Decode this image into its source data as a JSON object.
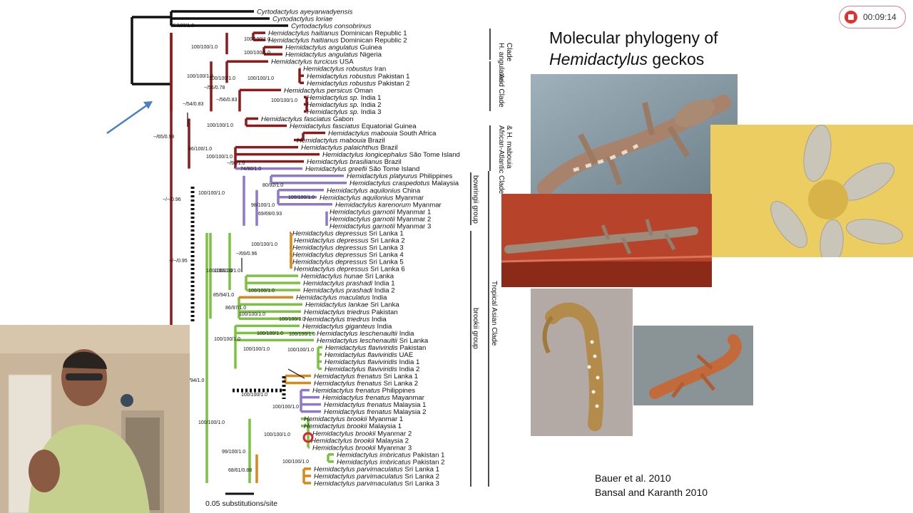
{
  "slide": {
    "title_line1": "Molecular phylogeny of",
    "title_genus": "Hemidactylus",
    "title_rest": " geckos",
    "references": [
      "Bauer et al. 2010",
      "Bansal and Karanth 2010"
    ]
  },
  "recorder": {
    "elapsed": "00:09:14",
    "stop_icon": "stop-record-icon"
  },
  "colors": {
    "black_branch": "#111111",
    "maroon_branch": "#8b1a1a",
    "purple_branch": "#8f78c4",
    "green_branch": "#7cc242",
    "orange_branch": "#d68a1c",
    "arrow_blue": "#4a7fc1",
    "highlight_red": "#d9262c"
  },
  "tree": {
    "scale_label": "0.05 substitutions/site",
    "taxa": [
      {
        "genus": "Cyrtodactylus",
        "species": "ayeyarwadyensis",
        "loc": ""
      },
      {
        "genus": "Cyrtodactylus",
        "species": "loriae",
        "loc": ""
      },
      {
        "genus": "Cyrtodactylus",
        "species": "consobrinus",
        "loc": ""
      },
      {
        "genus": "Hemidactylus",
        "species": "haitianus",
        "loc": "Dominican Republic 1"
      },
      {
        "genus": "Hemidactylus",
        "species": "haitianus",
        "loc": "Dominican Republic 2"
      },
      {
        "genus": "Hemidactylus",
        "species": "angulatus",
        "loc": "Guinea"
      },
      {
        "genus": "Hemidactylus",
        "species": "angulatus",
        "loc": "Nigeria"
      },
      {
        "genus": "Hemidactylus",
        "species": "turcicus",
        "loc": "USA"
      },
      {
        "genus": "Hemidactylus",
        "species": "robustus",
        "loc": "Iran"
      },
      {
        "genus": "Hemidactylus",
        "species": "robustus",
        "loc": "Pakistan 1"
      },
      {
        "genus": "Hemidactylus",
        "species": "robustus",
        "loc": "Pakistan 2"
      },
      {
        "genus": "Hemidactylus",
        "species": "persicus",
        "loc": "Oman"
      },
      {
        "genus": "Hemidactylus",
        "species": "sp.",
        "loc": "India 1"
      },
      {
        "genus": "Hemidactylus",
        "species": "sp.",
        "loc": "India 2"
      },
      {
        "genus": "Hemidactylus",
        "species": "sp.",
        "loc": "India 3"
      },
      {
        "genus": "Hemidactylus",
        "species": "fasciatus",
        "loc": "Gabon"
      },
      {
        "genus": "Hemidactylus",
        "species": "fasciatus",
        "loc": "Equatorial Guinea"
      },
      {
        "genus": "Hemidactylus",
        "species": "mabouia",
        "loc": "South Africa"
      },
      {
        "genus": "Hemidactylus",
        "species": "mabouia",
        "loc": "Brazil"
      },
      {
        "genus": "Hemidactylus",
        "species": "palaichthus",
        "loc": "Brazil"
      },
      {
        "genus": "Hemidactylus",
        "species": "longicephalus",
        "loc": "São Tome Island"
      },
      {
        "genus": "Hemidactylus",
        "species": "brasilianus",
        "loc": "Brazil"
      },
      {
        "genus": "Hemidactylus",
        "species": "greefii",
        "loc": "São Tome Island"
      },
      {
        "genus": "Hemidactylus",
        "species": "platyurus",
        "loc": "Philippines"
      },
      {
        "genus": "Hemidactylus",
        "species": "craspedotus",
        "loc": "Malaysia"
      },
      {
        "genus": "Hemidactylus",
        "species": "aquilonius",
        "loc": "China"
      },
      {
        "genus": "Hemidactylus",
        "species": "aquilonius",
        "loc": "Myanmar"
      },
      {
        "genus": "Hemidactylus",
        "species": "karenorum",
        "loc": "Myanmar"
      },
      {
        "genus": "Hemidactylus",
        "species": "garnotii",
        "loc": "Myanmar 1"
      },
      {
        "genus": "Hemidactylus",
        "species": "garnotii",
        "loc": "Myanmar 2"
      },
      {
        "genus": "Hemidactylus",
        "species": "garnotii",
        "loc": "Myanmar 3"
      },
      {
        "genus": "Hemidactylus",
        "species": "depressus",
        "loc": "Sri Lanka 1"
      },
      {
        "genus": "Hemidactylus",
        "species": "depressus",
        "loc": "Sri Lanka 2"
      },
      {
        "genus": "Hemidactylus",
        "species": "depressus",
        "loc": "Sri Lanka 3"
      },
      {
        "genus": "Hemidactylus",
        "species": "depressus",
        "loc": "Sri Lanka 4"
      },
      {
        "genus": "Hemidactylus",
        "species": "depressus",
        "loc": "Sri Lanka 5"
      },
      {
        "genus": "Hemidactylus",
        "species": "depressus",
        "loc": "Sri Lanka 6"
      },
      {
        "genus": "Hemidactylus",
        "species": "hunae",
        "loc": "Sri Lanka"
      },
      {
        "genus": "Hemidactylus",
        "species": "prashadi",
        "loc": "India 1"
      },
      {
        "genus": "Hemidactylus",
        "species": "prashadi",
        "loc": "India 2"
      },
      {
        "genus": "Hemidactylus",
        "species": "maculatus",
        "loc": "India"
      },
      {
        "genus": "Hemidactylus",
        "species": "lankae",
        "loc": "Sri Lanka"
      },
      {
        "genus": "Hemidactylus",
        "species": "triedrus",
        "loc": "Pakistan"
      },
      {
        "genus": "Hemidactylus",
        "species": "triedrus",
        "loc": "India"
      },
      {
        "genus": "Hemidactylus",
        "species": "giganteus",
        "loc": "India"
      },
      {
        "genus": "Hemidactylus",
        "species": "leschenaultii",
        "loc": "India"
      },
      {
        "genus": "Hemidactylus",
        "species": "leschenaultii",
        "loc": "Sri Lanka"
      },
      {
        "genus": "Hemidactylus",
        "species": "flaviviridis",
        "loc": "Pakistan"
      },
      {
        "genus": "Hemidactylus",
        "species": "flaviviridis",
        "loc": "UAE"
      },
      {
        "genus": "Hemidactylus",
        "species": "flaviviridis",
        "loc": "India 1"
      },
      {
        "genus": "Hemidactylus",
        "species": "flaviviridis",
        "loc": "India 2"
      },
      {
        "genus": "Hemidactylus",
        "species": "frenatus",
        "loc": "Sri Lanka 1"
      },
      {
        "genus": "Hemidactylus",
        "species": "frenatus",
        "loc": "Sri Lanka 2"
      },
      {
        "genus": "Hemidactylus",
        "species": "frenatus",
        "loc": "Philippines"
      },
      {
        "genus": "Hemidactylus",
        "species": "frenatus",
        "loc": "Mayanmar"
      },
      {
        "genus": "Hemidactylus",
        "species": "frenatus",
        "loc": "Malaysia 1"
      },
      {
        "genus": "Hemidactylus",
        "species": "frenatus",
        "loc": "Malaysia 2"
      },
      {
        "genus": "Hemidactylus",
        "species": "brookii",
        "loc": "Myanmar 1"
      },
      {
        "genus": "Hemidactylus",
        "species": "brookii",
        "loc": "Malaysia 1"
      },
      {
        "genus": "Hemidactylus",
        "species": "brookii",
        "loc": "Myanmar 2"
      },
      {
        "genus": "Hemidactylus",
        "species": "brookii",
        "loc": "Malaysia 2"
      },
      {
        "genus": "Hemidactylus",
        "species": "brookii",
        "loc": "Myanmar 3"
      },
      {
        "genus": "Hemidactylus",
        "species": "imbricatus",
        "loc": "Pakistan 1"
      },
      {
        "genus": "Hemidactylus",
        "species": "imbricatus",
        "loc": "Pakistan 2"
      },
      {
        "genus": "Hemidactylus",
        "species": "parvimaculatus",
        "loc": "Sri Lanka 1"
      },
      {
        "genus": "Hemidactylus",
        "species": "parvimaculatus",
        "loc": "Sri Lanka 2"
      },
      {
        "genus": "Hemidactylus",
        "species": "parvimaculatus",
        "loc": "Sri Lanka 3"
      }
    ],
    "support_labels": [
      "95/100/1.0",
      "100/100/1.0",
      "100/100/1.0",
      "100/100/1.0",
      "100/100/1.0",
      "100/100/1.0",
      "100/100/1.0",
      "~/56/0.78",
      "~/56/0.83",
      "100/100/1.0",
      "~/54/0.83",
      "~/65/0.98",
      "100/100/1.0",
      "86/100/1.0",
      "100/100/1.0",
      "~/90/1.0",
      "74/90/1.0",
      "~/~/0.96",
      "100/100/1.0",
      "80/92/1.0",
      "100/100/1.0",
      "98/100/1.0",
      "69/69/0.93",
      "~/~/0.95",
      "100/100/1.0",
      "~/69/0.96",
      "100/100/1.0",
      "85/94/1.0",
      "100/100/1.0",
      "86/97/1.0",
      "100/100/1.0",
      "100/100/1.0",
      "100/100/1.0",
      "100/100/1.0",
      "100/100/1.0",
      "100/100/1.0",
      "/94/1.0",
      "100/100/1.0",
      "100/100/1.0",
      "100/100/1.0",
      "100/100/1.0",
      "99/100/1.0",
      "68/61/0.88",
      "100/100/1.0",
      "100/100/1.0",
      "100/100/1.0"
    ],
    "clades": [
      {
        "label": "H. angulatus\nClade"
      },
      {
        "label": "Arid Clade"
      },
      {
        "label": "African-Atlantic Clade\n& H. mabouia"
      },
      {
        "label": "bowringii group"
      },
      {
        "label": "Tropical Asian Clade"
      },
      {
        "label": "brookii group"
      }
    ]
  }
}
